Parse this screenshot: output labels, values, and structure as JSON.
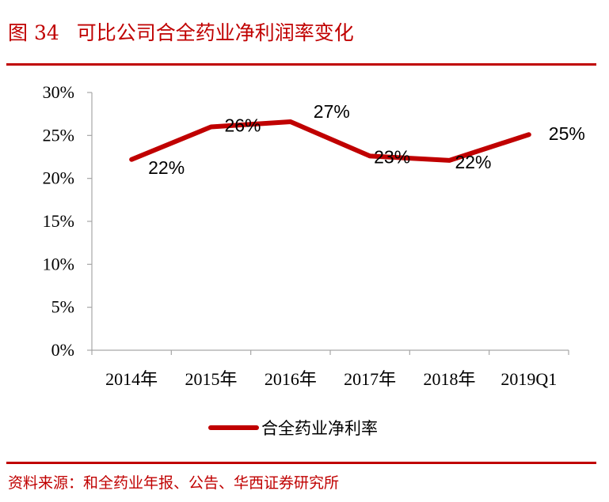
{
  "figure": {
    "number": "图 34",
    "title": "可比公司合全药业净利润率变化",
    "source": "资料来源：和全药业年报、公告、华西证券研究所"
  },
  "chart_data": {
    "type": "line",
    "categories": [
      "2014年",
      "2015年",
      "2016年",
      "2017年",
      "2018年",
      "2019Q1"
    ],
    "series": [
      {
        "name": "合全药业净利率",
        "values": [
          22.2,
          26.0,
          26.6,
          22.6,
          22.1,
          25.1
        ],
        "data_labels": [
          "22%",
          "26%",
          "27%",
          "23%",
          "22%",
          "25%"
        ],
        "color": "#c00000"
      }
    ],
    "y_ticks": [
      "0%",
      "5%",
      "10%",
      "15%",
      "20%",
      "25%",
      "30%"
    ],
    "ylim": [
      0,
      30
    ],
    "grid": false,
    "legend_position": "bottom"
  }
}
